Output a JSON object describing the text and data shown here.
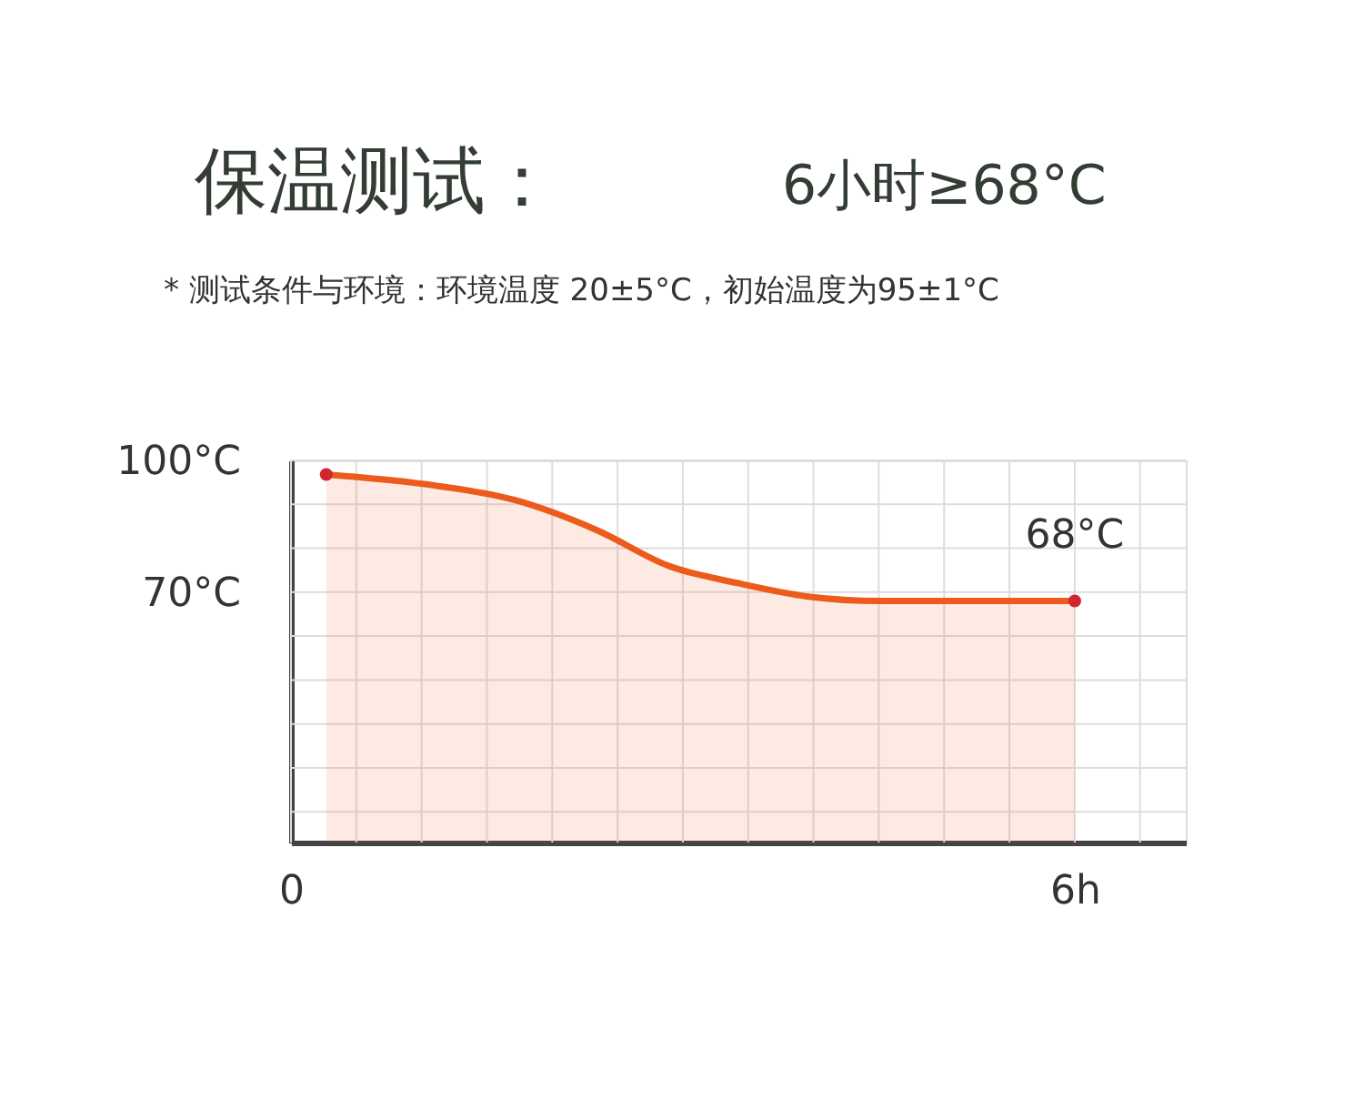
{
  "chart_data": {
    "type": "area",
    "title": "保温测试：",
    "subtitle": "* 测试条件与环境：环境温度 20±5°C，初始温度为95±1°C",
    "annotations": [
      "6小时≥68°C",
      {
        "text": "68°C",
        "x": 6,
        "y": 68
      }
    ],
    "series": [
      {
        "color": "#ec5a1c",
        "x": [
          0.27,
          1.02,
          1.71,
          2.35,
          2.89,
          3.43,
          3.96,
          4.5,
          6
        ],
        "values": [
          96.8,
          94.6,
          91,
          84,
          76,
          72,
          69,
          68,
          68
        ]
      },
      {
        "type": "scatter",
        "color": "#d0262e",
        "x": [
          0.27,
          6
        ],
        "values": [
          96.8,
          68
        ]
      }
    ],
    "xlim": [
      0,
      6.85
    ],
    "ylim": [
      13,
      100
    ],
    "xticks": [
      {
        "value": 0,
        "label": "0"
      },
      {
        "value": 0.5,
        "label": null
      },
      {
        "value": 1,
        "label": null
      },
      {
        "value": 1.5,
        "label": null
      },
      {
        "value": 2,
        "label": null
      },
      {
        "value": 2.5,
        "label": null
      },
      {
        "value": 3,
        "label": null
      },
      {
        "value": 3.5,
        "label": null
      },
      {
        "value": 4,
        "label": null
      },
      {
        "value": 4.5,
        "label": null
      },
      {
        "value": 5,
        "label": null
      },
      {
        "value": 5.5,
        "label": null
      },
      {
        "value": 6,
        "label": "6h"
      },
      {
        "value": 6.5,
        "label": null
      }
    ],
    "yticks": [
      {
        "value": 20,
        "label": null
      },
      {
        "value": 30,
        "label": null
      },
      {
        "value": 40,
        "label": null
      },
      {
        "value": 50,
        "label": null
      },
      {
        "value": 60,
        "label": null
      },
      {
        "value": 70,
        "label": "70°C"
      },
      {
        "value": 80,
        "label": null
      },
      {
        "value": 90,
        "label": null
      },
      {
        "value": 100,
        "label": "100°C"
      }
    ],
    "grid": true
  }
}
